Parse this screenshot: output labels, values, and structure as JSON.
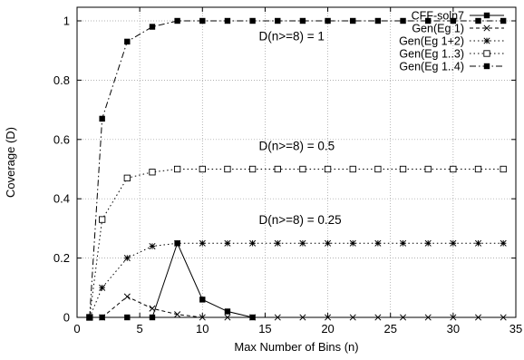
{
  "chart_data": {
    "type": "line",
    "xlabel": "Max Number of Bins (n)",
    "ylabel": "Coverage (D)",
    "xlim": [
      0,
      35
    ],
    "ylim": [
      0,
      1.05
    ],
    "xticks": [
      0,
      5,
      10,
      15,
      20,
      25,
      30,
      35
    ],
    "yticks": [
      0,
      0.2,
      0.4,
      0.6,
      0.8,
      1
    ],
    "grid": true,
    "legend_position": "top-right",
    "annotations": [
      {
        "text": "D(n>=8) = 1",
        "x": 14.5,
        "y": 0.95
      },
      {
        "text": "D(n>=8) = 0.5",
        "x": 14.5,
        "y": 0.58
      },
      {
        "text": "D(n>=8) = 0.25",
        "x": 14.5,
        "y": 0.33
      }
    ],
    "series": [
      {
        "name": "CFF-soln7",
        "marker": "filled-square",
        "dash": "solid",
        "x": [
          1,
          2,
          4,
          6,
          8,
          10,
          12,
          14
        ],
        "y": [
          0,
          0,
          0,
          0,
          0.25,
          0.06,
          0.02,
          0
        ]
      },
      {
        "name": "Gen(Eg 1)",
        "marker": "x",
        "dash": "dashed",
        "x": [
          1,
          2,
          4,
          6,
          8,
          10,
          12,
          14,
          16,
          18,
          20,
          22,
          24,
          26,
          28,
          30,
          32,
          34
        ],
        "y": [
          0,
          0,
          0.07,
          0.03,
          0.01,
          0,
          0,
          0,
          0,
          0,
          0,
          0,
          0,
          0,
          0,
          0,
          0,
          0
        ]
      },
      {
        "name": "Gen(Eg 1+2)",
        "marker": "star",
        "dash": "dotted",
        "x": [
          1,
          2,
          4,
          6,
          8,
          10,
          12,
          14,
          16,
          18,
          20,
          22,
          24,
          26,
          28,
          30,
          32,
          34
        ],
        "y": [
          0,
          0.1,
          0.2,
          0.24,
          0.25,
          0.25,
          0.25,
          0.25,
          0.25,
          0.25,
          0.25,
          0.25,
          0.25,
          0.25,
          0.25,
          0.25,
          0.25,
          0.25
        ]
      },
      {
        "name": "Gen(Eg 1..3)",
        "marker": "open-square",
        "dash": "dotted",
        "x": [
          1,
          2,
          4,
          6,
          8,
          10,
          12,
          14,
          16,
          18,
          20,
          22,
          24,
          26,
          28,
          30,
          32,
          34
        ],
        "y": [
          0,
          0.33,
          0.47,
          0.49,
          0.5,
          0.5,
          0.5,
          0.5,
          0.5,
          0.5,
          0.5,
          0.5,
          0.5,
          0.5,
          0.5,
          0.5,
          0.5,
          0.5
        ]
      },
      {
        "name": "Gen(Eg 1..4)",
        "marker": "filled-square",
        "dash": "dashdot",
        "x": [
          1,
          2,
          4,
          6,
          8,
          10,
          12,
          14,
          16,
          18,
          20,
          22,
          24,
          26,
          28,
          30,
          32,
          34
        ],
        "y": [
          0,
          0.67,
          0.93,
          0.98,
          1,
          1,
          1,
          1,
          1,
          1,
          1,
          1,
          1,
          1,
          1,
          1,
          1,
          1
        ]
      }
    ]
  }
}
